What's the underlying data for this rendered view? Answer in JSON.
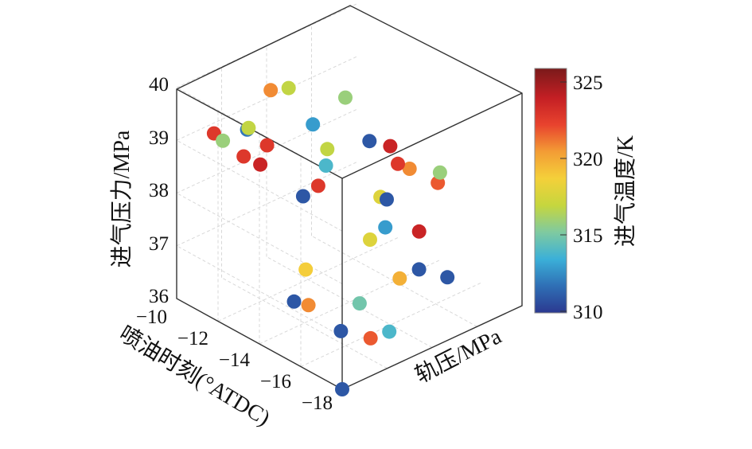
{
  "chart_data": {
    "type": "scatter3d",
    "title": "",
    "axes": {
      "x": {
        "label": "喷油时刻(°ATDC)",
        "ticks": [
          "−10",
          "−12",
          "−14",
          "−16",
          "−18"
        ],
        "range": [
          -18,
          -10
        ]
      },
      "y": {
        "label": "轨压/MPa",
        "ticks": []
      },
      "z": {
        "label": "进气压力/MPa",
        "ticks": [
          "40",
          "39",
          "38",
          "37",
          "36"
        ],
        "range": [
          36,
          40
        ]
      }
    },
    "colorbar": {
      "label": "进气温度/K",
      "ticks": [
        "325",
        "320",
        "315",
        "310"
      ],
      "range": [
        310,
        326
      ],
      "colormap": [
        "#2b3990",
        "#2f6fb5",
        "#3bb0d8",
        "#7fcaa0",
        "#c6d63e",
        "#f4d03a",
        "#f39c35",
        "#e8432e",
        "#c41f24",
        "#7a1a1a"
      ]
    },
    "grid": true,
    "points": [
      {
        "x": -13.5,
        "y": 0.1,
        "z": 39.5,
        "t": 323
      },
      {
        "x": -13.5,
        "y": 0.25,
        "z": 36.3,
        "t": 311
      },
      {
        "x": -10.5,
        "y": 0.15,
        "z": 39.0,
        "t": 323
      },
      {
        "x": -11.5,
        "y": 0.2,
        "z": 38.7,
        "t": 323
      },
      {
        "x": -10.8,
        "y": 0.3,
        "z": 38.9,
        "t": 312
      },
      {
        "x": -10.0,
        "y": 0.4,
        "z": 38.6,
        "t": 317
      },
      {
        "x": -11.0,
        "y": 0.35,
        "z": 38.2,
        "t": 324
      },
      {
        "x": -12.2,
        "y": 0.45,
        "z": 37.7,
        "t": 311
      },
      {
        "x": -11.8,
        "y": 0.05,
        "z": 39.3,
        "t": 316
      },
      {
        "x": -10.2,
        "y": 0.5,
        "z": 39.2,
        "t": 321
      },
      {
        "x": -12.5,
        "y": 0.55,
        "z": 38.5,
        "t": 317
      },
      {
        "x": -12.0,
        "y": 0.6,
        "z": 38.0,
        "t": 314
      },
      {
        "x": -13.8,
        "y": 0.35,
        "z": 38.4,
        "t": 323
      },
      {
        "x": -12.8,
        "y": 0.75,
        "z": 38.4,
        "t": 311
      },
      {
        "x": -14.2,
        "y": 0.65,
        "z": 37.8,
        "t": 318
      },
      {
        "x": -14.5,
        "y": 0.2,
        "z": 37.2,
        "t": 319
      },
      {
        "x": -13.2,
        "y": 0.8,
        "z": 37.3,
        "t": 311
      },
      {
        "x": -15.0,
        "y": 0.5,
        "z": 37.4,
        "t": 318
      },
      {
        "x": -14.0,
        "y": 0.7,
        "z": 37.1,
        "t": 313
      },
      {
        "x": -15.5,
        "y": 0.1,
        "z": 36.9,
        "t": 321
      },
      {
        "x": -15.8,
        "y": 0.35,
        "z": 36.6,
        "t": 315
      },
      {
        "x": -16.2,
        "y": 0.2,
        "z": 36.4,
        "t": 311
      },
      {
        "x": -16.8,
        "y": 0.4,
        "z": 36.2,
        "t": 314
      },
      {
        "x": -17.2,
        "y": 0.25,
        "z": 36.4,
        "t": 322
      },
      {
        "x": -16.0,
        "y": 0.55,
        "z": 36.8,
        "t": 320
      },
      {
        "x": -17.0,
        "y": 0.7,
        "z": 36.8,
        "t": 311
      },
      {
        "x": -18.0,
        "y": 0.0,
        "z": 36.0,
        "t": 311
      },
      {
        "x": -12.5,
        "y": 0.9,
        "z": 38.0,
        "t": 324
      },
      {
        "x": -13.0,
        "y": 0.95,
        "z": 37.6,
        "t": 321
      },
      {
        "x": -12.0,
        "y": 1.0,
        "z": 37.4,
        "t": 323
      },
      {
        "x": -10.5,
        "y": 0.7,
        "z": 38.3,
        "t": 313
      },
      {
        "x": -11.2,
        "y": 0.8,
        "z": 38.8,
        "t": 316
      },
      {
        "x": -11.5,
        "y": 0.45,
        "z": 39.6,
        "t": 317
      },
      {
        "x": -14.8,
        "y": 0.9,
        "z": 37.8,
        "t": 322
      },
      {
        "x": -15.2,
        "y": 0.75,
        "z": 37.2,
        "t": 324
      },
      {
        "x": -16.5,
        "y": 0.6,
        "z": 37.0,
        "t": 311
      },
      {
        "x": -13.6,
        "y": 1.05,
        "z": 37.5,
        "t": 316
      }
    ]
  }
}
